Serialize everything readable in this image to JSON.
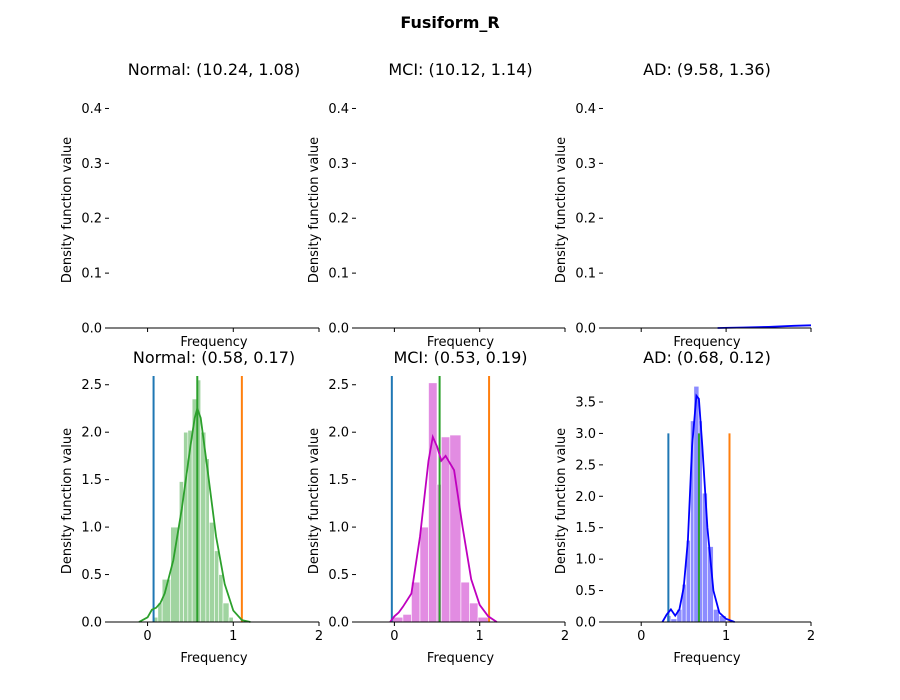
{
  "figure": {
    "title": "Fusiform_R"
  },
  "chart_data": [
    {
      "type": "histogram",
      "title": "Normal: (10.24, 1.08)",
      "xlabel": "Frequency",
      "ylabel": "Density function value",
      "xlim": [
        -0.45,
        2.0
      ],
      "ylim": [
        0,
        0.43
      ],
      "xticks": [],
      "yticks": [
        0.0,
        0.1,
        0.2,
        0.3,
        0.4
      ],
      "color": "#2ca02c",
      "bins": [],
      "kde": [],
      "vlines": []
    },
    {
      "type": "histogram",
      "title": "MCI: (10.12, 1.14)",
      "xlabel": "Frequency",
      "ylabel": "Density function value",
      "xlim": [
        -0.45,
        2.0
      ],
      "ylim": [
        0,
        0.43
      ],
      "xticks": [],
      "yticks": [
        0.0,
        0.1,
        0.2,
        0.3,
        0.4
      ],
      "color": "#bf00bf",
      "bins": [],
      "kde": [],
      "vlines": []
    },
    {
      "type": "histogram",
      "title": "AD: (9.58, 1.36)",
      "xlabel": "Frequency",
      "ylabel": "Density function value",
      "xlim": [
        -0.45,
        2.0
      ],
      "ylim": [
        0,
        0.43
      ],
      "xticks": [],
      "yticks": [
        0.0,
        0.1,
        0.2,
        0.3,
        0.4
      ],
      "color": "#0000ff",
      "bins": [],
      "kde": [
        [
          0.9,
          0.0
        ],
        [
          1.2,
          0.001
        ],
        [
          1.5,
          0.002
        ],
        [
          1.8,
          0.004
        ],
        [
          2.0,
          0.005
        ]
      ],
      "vlines": []
    },
    {
      "type": "histogram",
      "title": "Normal: (0.58, 0.17)",
      "xlabel": "Frequency",
      "ylabel": "Density function value",
      "xlim": [
        -0.45,
        2.0
      ],
      "ylim": [
        0,
        2.55
      ],
      "xticks": [
        0,
        1,
        2
      ],
      "yticks": [
        0.0,
        0.5,
        1.0,
        1.5,
        2.0,
        2.5
      ],
      "color": "#2ca02c",
      "bins": [
        [
          0.07,
          0.12,
          0.05
        ],
        [
          0.12,
          0.17,
          0.2
        ],
        [
          0.17,
          0.27,
          0.45
        ],
        [
          0.27,
          0.37,
          1.0
        ],
        [
          0.37,
          0.42,
          1.48
        ],
        [
          0.42,
          0.47,
          2.0
        ],
        [
          0.47,
          0.52,
          2.02
        ],
        [
          0.52,
          0.58,
          2.35
        ],
        [
          0.58,
          0.62,
          2.55
        ],
        [
          0.62,
          0.68,
          2.0
        ],
        [
          0.68,
          0.72,
          1.72
        ],
        [
          0.72,
          0.78,
          1.05
        ],
        [
          0.78,
          0.83,
          0.75
        ],
        [
          0.83,
          0.88,
          0.5
        ],
        [
          0.88,
          0.95,
          0.2
        ],
        [
          0.95,
          1.0,
          0.05
        ]
      ],
      "kde": [
        [
          -0.1,
          0.0
        ],
        [
          0.0,
          0.05
        ],
        [
          0.05,
          0.13
        ],
        [
          0.1,
          0.15
        ],
        [
          0.15,
          0.2
        ],
        [
          0.2,
          0.3
        ],
        [
          0.3,
          0.65
        ],
        [
          0.4,
          1.2
        ],
        [
          0.5,
          1.85
        ],
        [
          0.55,
          2.15
        ],
        [
          0.58,
          2.25
        ],
        [
          0.62,
          2.15
        ],
        [
          0.7,
          1.6
        ],
        [
          0.8,
          0.9
        ],
        [
          0.9,
          0.4
        ],
        [
          1.0,
          0.12
        ],
        [
          1.1,
          0.02
        ],
        [
          1.2,
          0.0
        ]
      ],
      "vlines": [
        {
          "x": 0.07,
          "ymax": 2.7,
          "color": "#1f77b4"
        },
        {
          "x": 0.58,
          "ymax": 2.7,
          "color": "#2ca02c"
        },
        {
          "x": 1.1,
          "ymax": 2.7,
          "color": "#ff7f0e"
        }
      ]
    },
    {
      "type": "histogram",
      "title": "MCI: (0.53, 0.19)",
      "xlabel": "Frequency",
      "ylabel": "Density function value",
      "xlim": [
        -0.45,
        2.0
      ],
      "ylim": [
        0,
        2.55
      ],
      "xticks": [
        0,
        1,
        2
      ],
      "yticks": [
        0.0,
        0.5,
        1.0,
        1.5,
        2.0,
        2.5
      ],
      "color": "#bf00bf",
      "bins": [
        [
          -0.02,
          0.1,
          0.05
        ],
        [
          0.1,
          0.2,
          0.08
        ],
        [
          0.2,
          0.3,
          0.42
        ],
        [
          0.3,
          0.4,
          1.0
        ],
        [
          0.4,
          0.5,
          2.52
        ],
        [
          0.5,
          0.55,
          1.45
        ],
        [
          0.55,
          0.65,
          1.95
        ],
        [
          0.65,
          0.78,
          1.97
        ],
        [
          0.78,
          0.88,
          0.42
        ],
        [
          0.88,
          0.98,
          0.2
        ],
        [
          0.98,
          1.1,
          0.05
        ]
      ],
      "kde": [
        [
          -0.05,
          0.0
        ],
        [
          0.0,
          0.06
        ],
        [
          0.05,
          0.1
        ],
        [
          0.1,
          0.16
        ],
        [
          0.2,
          0.3
        ],
        [
          0.3,
          0.9
        ],
        [
          0.4,
          1.7
        ],
        [
          0.45,
          1.95
        ],
        [
          0.5,
          1.85
        ],
        [
          0.55,
          1.7
        ],
        [
          0.6,
          1.75
        ],
        [
          0.7,
          1.6
        ],
        [
          0.8,
          1.0
        ],
        [
          0.9,
          0.45
        ],
        [
          1.0,
          0.18
        ],
        [
          1.1,
          0.06
        ],
        [
          1.2,
          0.0
        ]
      ],
      "vlines": [
        {
          "x": -0.03,
          "ymax": 2.7,
          "color": "#1f77b4"
        },
        {
          "x": 0.53,
          "ymax": 2.7,
          "color": "#2ca02c"
        },
        {
          "x": 1.11,
          "ymax": 2.7,
          "color": "#ff7f0e"
        }
      ]
    },
    {
      "type": "histogram",
      "title": "AD: (0.68, 0.12)",
      "xlabel": "Frequency",
      "ylabel": "Density function value",
      "xlim": [
        -0.45,
        2.0
      ],
      "ylim": [
        0,
        3.85
      ],
      "xticks": [
        0,
        1,
        2
      ],
      "yticks": [
        0.0,
        0.5,
        1.0,
        1.5,
        2.0,
        2.5,
        3.0,
        3.5
      ],
      "color": "#0000ff",
      "bins": [
        [
          0.3,
          0.35,
          0.1
        ],
        [
          0.35,
          0.42,
          0.05
        ],
        [
          0.42,
          0.48,
          0.2
        ],
        [
          0.48,
          0.53,
          0.6
        ],
        [
          0.53,
          0.58,
          1.3
        ],
        [
          0.58,
          0.62,
          3.2
        ],
        [
          0.62,
          0.68,
          3.75
        ],
        [
          0.68,
          0.72,
          3.2
        ],
        [
          0.72,
          0.78,
          2.05
        ],
        [
          0.78,
          0.85,
          1.2
        ],
        [
          0.85,
          0.92,
          0.2
        ],
        [
          0.92,
          1.0,
          0.1
        ]
      ],
      "kde": [
        [
          0.25,
          0.0
        ],
        [
          0.3,
          0.12
        ],
        [
          0.35,
          0.2
        ],
        [
          0.4,
          0.1
        ],
        [
          0.45,
          0.2
        ],
        [
          0.5,
          0.55
        ],
        [
          0.55,
          1.3
        ],
        [
          0.6,
          2.8
        ],
        [
          0.65,
          3.6
        ],
        [
          0.68,
          3.55
        ],
        [
          0.72,
          2.8
        ],
        [
          0.78,
          1.5
        ],
        [
          0.85,
          0.5
        ],
        [
          0.92,
          0.15
        ],
        [
          1.0,
          0.05
        ],
        [
          1.1,
          0.0
        ]
      ],
      "vlines": [
        {
          "x": 0.32,
          "ymax": 3.0,
          "color": "#1f77b4"
        },
        {
          "x": 0.68,
          "ymax": 3.0,
          "color": "#2ca02c"
        },
        {
          "x": 1.04,
          "ymax": 3.0,
          "color": "#ff7f0e"
        }
      ]
    }
  ]
}
